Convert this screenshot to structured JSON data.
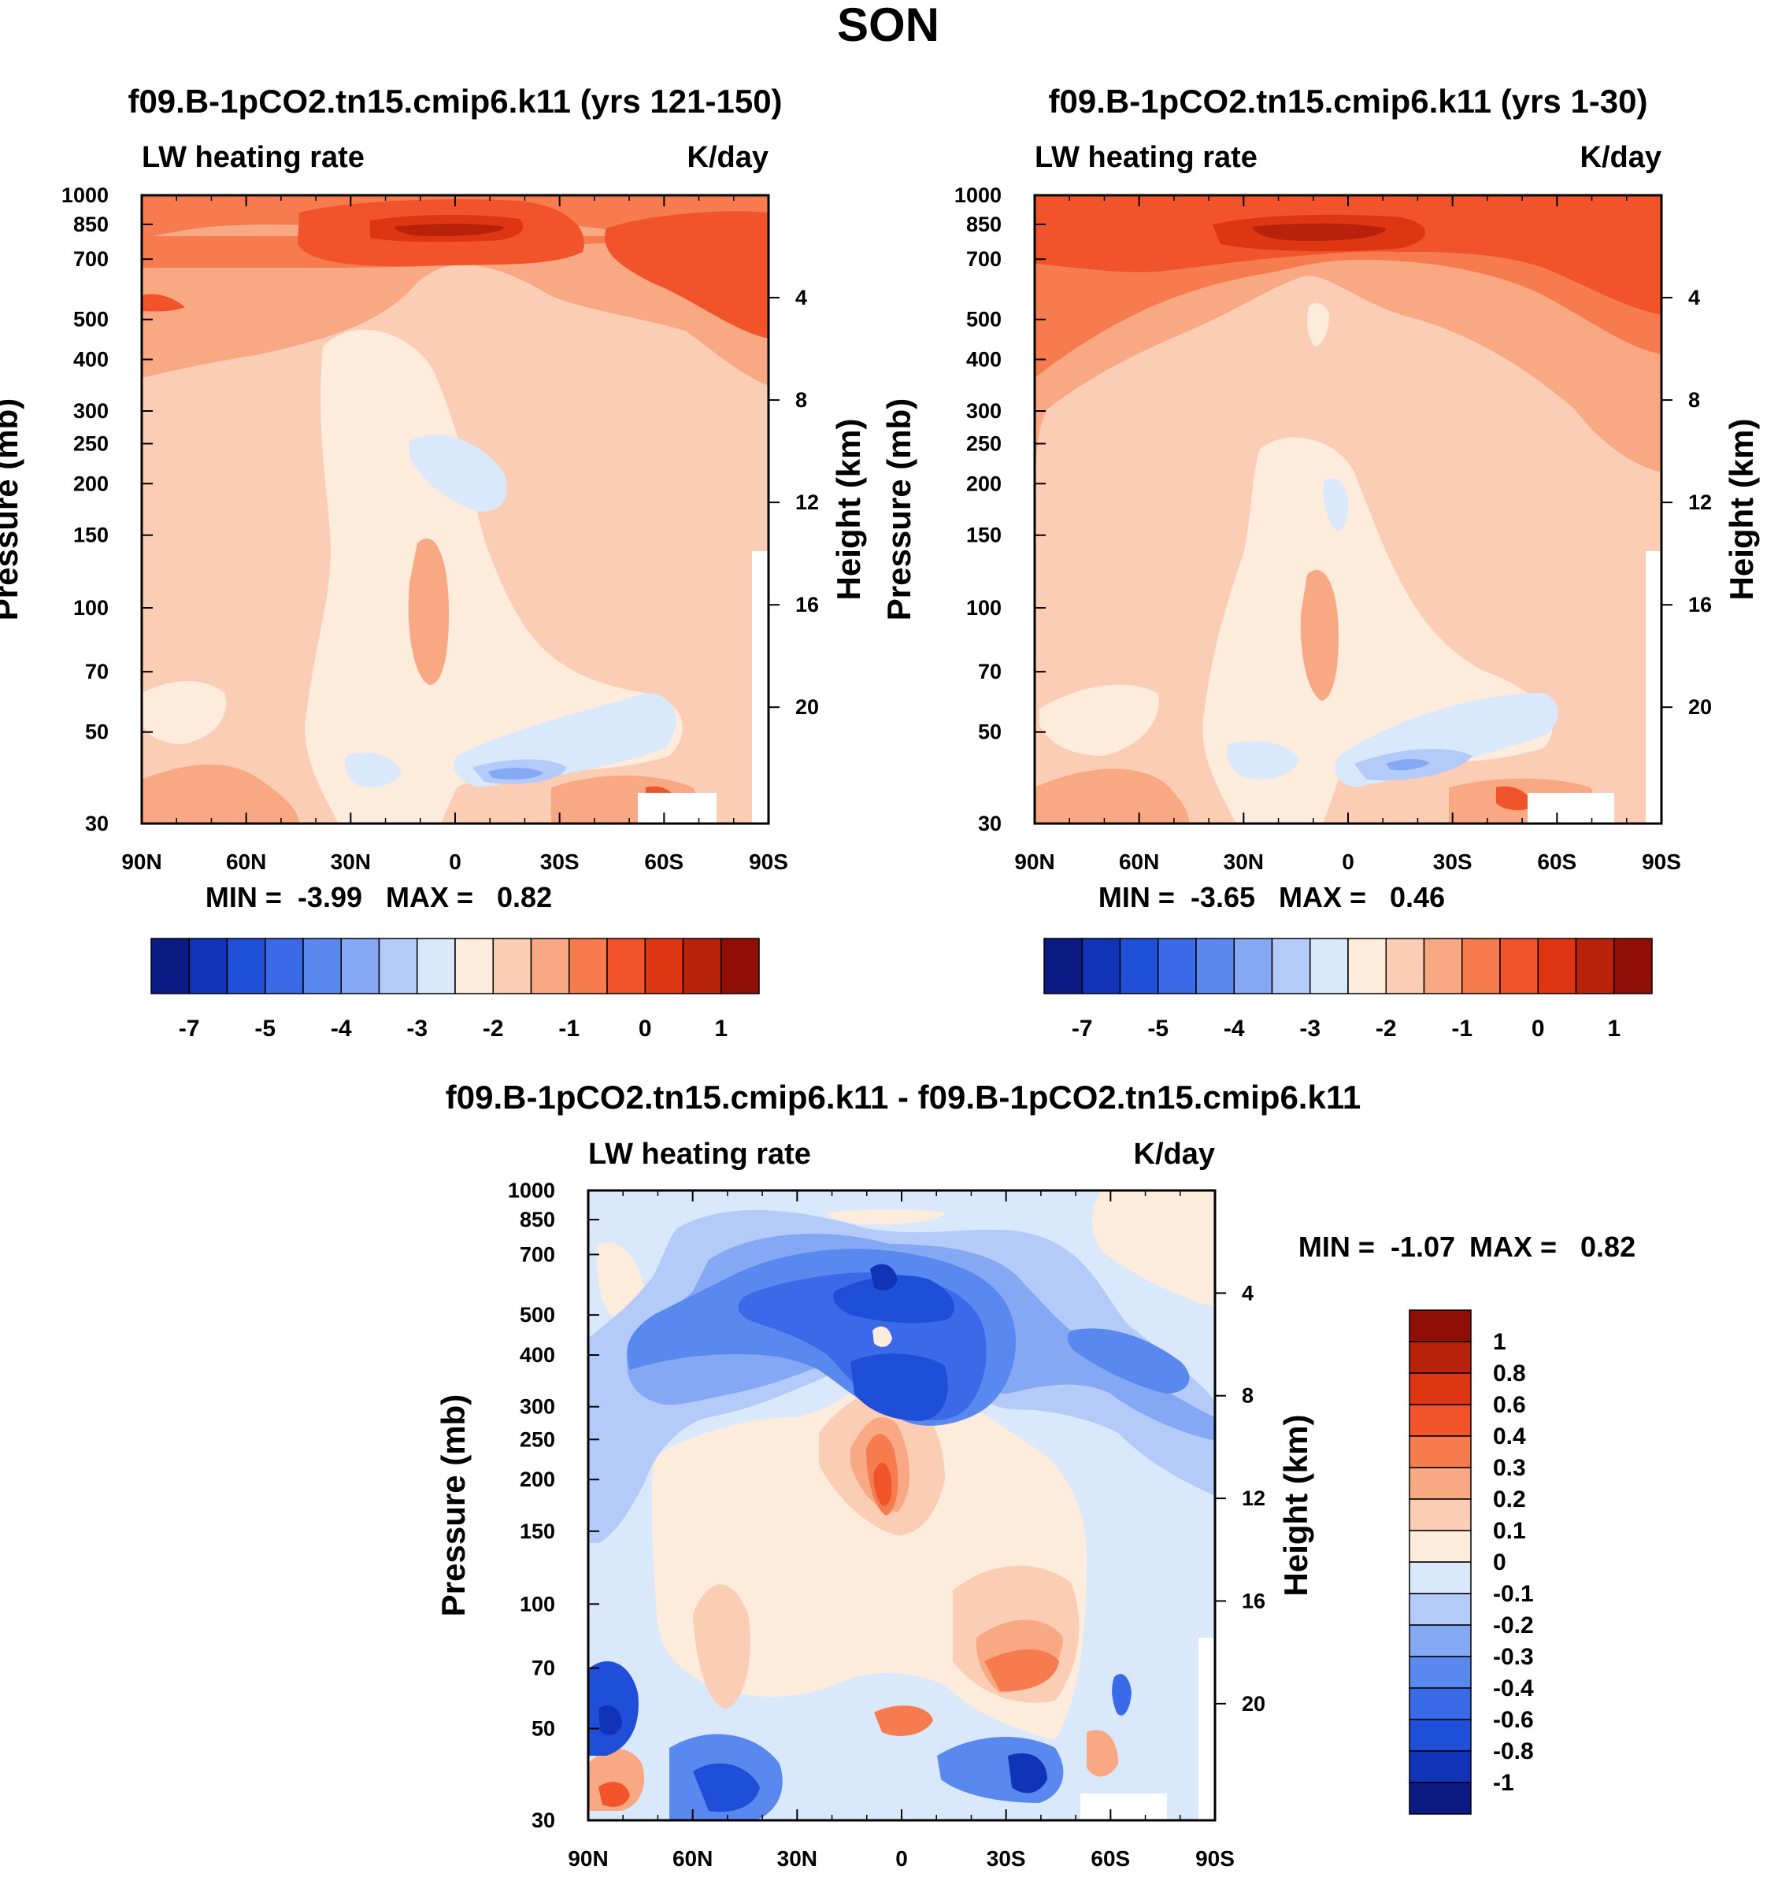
{
  "figure_title": "SON",
  "chart_data": [
    {
      "type": "heatmap",
      "title": "f09.B-1pCO2.tn15.cmip6.k11 (yrs 121-150)",
      "left_label": "LW heating rate",
      "right_label": "K/day",
      "ylabel": "Pressure (mb)",
      "ylabel_right": "Height (km)",
      "x_ticks": [
        "90N",
        "60N",
        "30N",
        "0",
        "30S",
        "60S",
        "90S"
      ],
      "y_ticks": [
        "30",
        "50",
        "70",
        "100",
        "150",
        "200",
        "250",
        "300",
        "400",
        "500",
        "700",
        "850",
        "1000"
      ],
      "height_ticks": [
        "20",
        "16",
        "12",
        "8",
        "4"
      ],
      "min_label": "MIN =  -3.99",
      "max_label": "MAX =   0.82",
      "min": -3.99,
      "max": 0.82,
      "colorbar_ticks": [
        "-7",
        "-5",
        "-4",
        "-3",
        "-2",
        "-1",
        "0",
        "1"
      ]
    },
    {
      "type": "heatmap",
      "title": "f09.B-1pCO2.tn15.cmip6.k11 (yrs 1-30)",
      "left_label": "LW heating rate",
      "right_label": "K/day",
      "ylabel": "Pressure (mb)",
      "ylabel_right": "Height (km)",
      "x_ticks": [
        "90N",
        "60N",
        "30N",
        "0",
        "30S",
        "60S",
        "90S"
      ],
      "y_ticks": [
        "30",
        "50",
        "70",
        "100",
        "150",
        "200",
        "250",
        "300",
        "400",
        "500",
        "700",
        "850",
        "1000"
      ],
      "height_ticks": [
        "20",
        "16",
        "12",
        "8",
        "4"
      ],
      "min_label": "MIN =  -3.65",
      "max_label": "MAX =   0.46",
      "min": -3.65,
      "max": 0.46,
      "colorbar_ticks": [
        "-7",
        "-5",
        "-4",
        "-3",
        "-2",
        "-1",
        "0",
        "1"
      ]
    },
    {
      "type": "heatmap",
      "title": "f09.B-1pCO2.tn15.cmip6.k11 - f09.B-1pCO2.tn15.cmip6.k11",
      "left_label": "LW heating rate",
      "right_label": "K/day",
      "ylabel": "Pressure (mb)",
      "ylabel_right": "Height (km)",
      "x_ticks": [
        "90N",
        "60N",
        "30N",
        "0",
        "30S",
        "60S",
        "90S"
      ],
      "y_ticks": [
        "30",
        "50",
        "70",
        "100",
        "150",
        "200",
        "250",
        "300",
        "400",
        "500",
        "700",
        "850",
        "1000"
      ],
      "height_ticks": [
        "20",
        "16",
        "12",
        "8",
        "4"
      ],
      "min_label": "MIN =  -1.07",
      "max_label": "MAX =   0.82",
      "min": -1.07,
      "max": 0.82,
      "colorbar_ticks": [
        "1",
        "0.8",
        "0.6",
        "0.4",
        "0.3",
        "0.2",
        "0.1",
        "0",
        "-0.1",
        "-0.2",
        "-0.3",
        "-0.4",
        "-0.6",
        "-0.8",
        "-1"
      ]
    }
  ],
  "colors": {
    "palette16": [
      "#0c1a84",
      "#1133b8",
      "#1f4fd8",
      "#3a6ae8",
      "#5988ee",
      "#85a8f4",
      "#b4cbfa",
      "#dae8fb",
      "#fdebdc",
      "#fbcdb5",
      "#f8a882",
      "#f67c50",
      "#f1542a",
      "#de3512",
      "#b8220a",
      "#8f0e06"
    ],
    "blank": "#ffffff"
  }
}
